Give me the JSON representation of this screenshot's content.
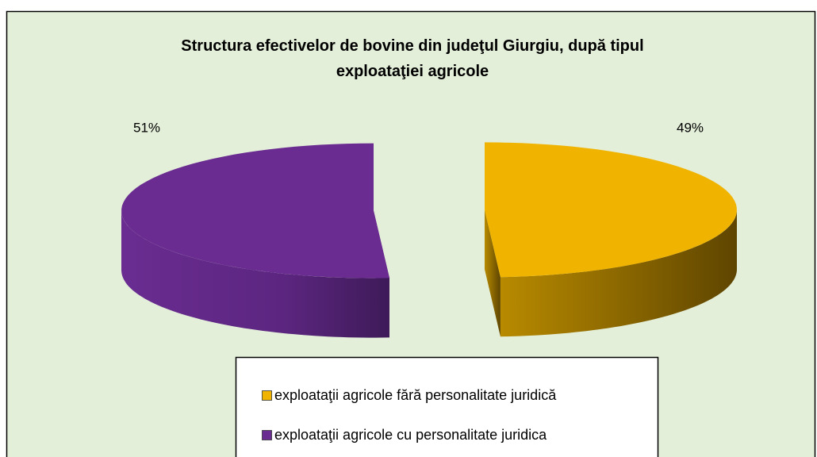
{
  "chart_data": {
    "type": "pie",
    "title": "Structura efectivelor de bovine din judeţul Giurgiu, după tipul exploataţiei agricole",
    "categories": [
      "exploataţii agricole fără personalitate juridică",
      "exploataţii agricole cu personalitate juridica"
    ],
    "values": [
      49,
      51
    ],
    "value_labels": [
      "49%",
      "51%"
    ],
    "colors": [
      "#F0B400",
      "#6A2C91"
    ],
    "legend": "bottom",
    "three_d": true
  }
}
